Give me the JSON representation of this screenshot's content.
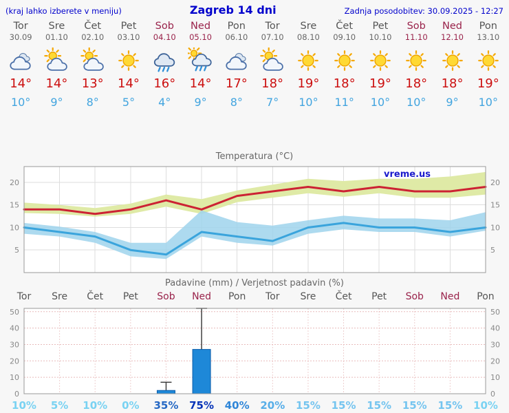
{
  "header": {
    "left_note": "(kraj lahko izberete v meniju)",
    "title": "Zagreb 14 dni",
    "updated": "Zadnja posodobitev: 30.09.2025 - 12:27"
  },
  "days": [
    {
      "name": "Tor",
      "date": "30.09",
      "icon": "cloudy",
      "tmax": "14°",
      "tmin": "10°",
      "weekend": false
    },
    {
      "name": "Sre",
      "date": "01.10",
      "icon": "partly",
      "tmax": "14°",
      "tmin": "9°",
      "weekend": false
    },
    {
      "name": "Čet",
      "date": "02.10",
      "icon": "partly",
      "tmax": "13°",
      "tmin": "8°",
      "weekend": false
    },
    {
      "name": "Pet",
      "date": "03.10",
      "icon": "sunny",
      "tmax": "14°",
      "tmin": "5°",
      "weekend": false
    },
    {
      "name": "Sob",
      "date": "04.10",
      "icon": "rain",
      "tmax": "16°",
      "tmin": "4°",
      "weekend": true
    },
    {
      "name": "Ned",
      "date": "05.10",
      "icon": "rain-sun",
      "tmax": "14°",
      "tmin": "9°",
      "weekend": true
    },
    {
      "name": "Pon",
      "date": "06.10",
      "icon": "cloudy",
      "tmax": "17°",
      "tmin": "8°",
      "weekend": false
    },
    {
      "name": "Tor",
      "date": "07.10",
      "icon": "partly",
      "tmax": "18°",
      "tmin": "7°",
      "weekend": false
    },
    {
      "name": "Sre",
      "date": "08.10",
      "icon": "sunny",
      "tmax": "19°",
      "tmin": "10°",
      "weekend": false
    },
    {
      "name": "Čet",
      "date": "09.10",
      "icon": "sunny",
      "tmax": "18°",
      "tmin": "11°",
      "weekend": false
    },
    {
      "name": "Pet",
      "date": "10.10",
      "icon": "sunny",
      "tmax": "19°",
      "tmin": "10°",
      "weekend": false
    },
    {
      "name": "Sob",
      "date": "11.10",
      "icon": "sunny",
      "tmax": "18°",
      "tmin": "10°",
      "weekend": true
    },
    {
      "name": "Ned",
      "date": "12.10",
      "icon": "sunny",
      "tmax": "18°",
      "tmin": "9°",
      "weekend": true
    },
    {
      "name": "Pon",
      "date": "13.10",
      "icon": "sunny",
      "tmax": "19°",
      "tmin": "10°",
      "weekend": false
    }
  ],
  "colors": {
    "header_blue": "#0000cc",
    "weekend_red": "#99224a",
    "tmax_red": "#cc0f0f",
    "tmin_blue": "#41a4df",
    "bar_blue": "#1e88d8"
  },
  "chart_data": [
    {
      "type": "area",
      "title": "Temperatura (°C)",
      "x_days": [
        "Tor",
        "Sre",
        "Čet",
        "Pet",
        "Sob",
        "Ned",
        "Pon",
        "Tor",
        "Sre",
        "Čet",
        "Pet",
        "Sob",
        "Ned",
        "Pon"
      ],
      "ylim": [
        0,
        23.5
      ],
      "yticks": [
        5,
        10,
        15,
        20
      ],
      "watermark": "vreme.us",
      "series": [
        {
          "name": "max-temp",
          "color": "#cc2233",
          "band_color": "#dfeaa6",
          "band_opacity": 1,
          "values": [
            14,
            14,
            13,
            14,
            16,
            14,
            17,
            18,
            19,
            18,
            19,
            18,
            18,
            19
          ],
          "band_upper": [
            15.5,
            15.0,
            14.3,
            15.3,
            17.3,
            16.3,
            18.2,
            19.5,
            20.8,
            20.3,
            20.8,
            20.8,
            21.3,
            22.3
          ],
          "band_lower": [
            13.2,
            13.0,
            12.4,
            13.0,
            14.6,
            13.0,
            15.6,
            16.6,
            17.6,
            16.8,
            17.6,
            16.6,
            16.6,
            17.3
          ]
        },
        {
          "name": "min-temp",
          "color": "#3aa4dc",
          "band_color": "#9fd4ec",
          "band_opacity": 0.85,
          "values": [
            10,
            9,
            8,
            5,
            4,
            9,
            8,
            7,
            10,
            11,
            10,
            10,
            9,
            10
          ],
          "band_upper": [
            11.0,
            10.2,
            9.0,
            6.6,
            6.6,
            13.8,
            11.2,
            10.4,
            11.6,
            12.6,
            12.0,
            12.0,
            11.6,
            13.4
          ],
          "band_lower": [
            8.6,
            8.0,
            6.6,
            3.6,
            3.0,
            8.0,
            6.6,
            6.0,
            8.6,
            9.6,
            9.0,
            9.0,
            8.0,
            9.3
          ]
        }
      ]
    },
    {
      "type": "bar",
      "title": "Padavine (mm) / Verjetnost padavin (%)",
      "categories": [
        "Tor",
        "Sre",
        "Čet",
        "Pet",
        "Sob",
        "Ned",
        "Pon",
        "Tor",
        "Sre",
        "Čet",
        "Pet",
        "Sob",
        "Ned",
        "Pon"
      ],
      "weekend": [
        false,
        false,
        false,
        false,
        true,
        true,
        false,
        false,
        false,
        false,
        false,
        true,
        true,
        false
      ],
      "ylim": [
        0,
        52
      ],
      "yticks": [
        0,
        10,
        20,
        30,
        40,
        50
      ],
      "precip_mm": [
        0,
        0,
        0,
        0,
        2,
        27,
        0,
        0,
        0,
        0,
        0,
        0,
        0,
        0
      ],
      "precip_max_mm": [
        0,
        0,
        0,
        0,
        7,
        52,
        0,
        0,
        0,
        0,
        0,
        0,
        0,
        0
      ],
      "prob_percent": [
        "10%",
        "5%",
        "10%",
        "0%",
        "35%",
        "75%",
        "40%",
        "20%",
        "15%",
        "15%",
        "15%",
        "15%",
        "15%",
        "10%"
      ],
      "prob_colors": [
        "#79d2f2",
        "#79d2f2",
        "#79d2f2",
        "#79d2f2",
        "#2668c4",
        "#0633b8",
        "#2f86d8",
        "#57aee8",
        "#74c4ef",
        "#74c4ef",
        "#74c4ef",
        "#74c4ef",
        "#74c4ef",
        "#79d2f2"
      ]
    }
  ]
}
